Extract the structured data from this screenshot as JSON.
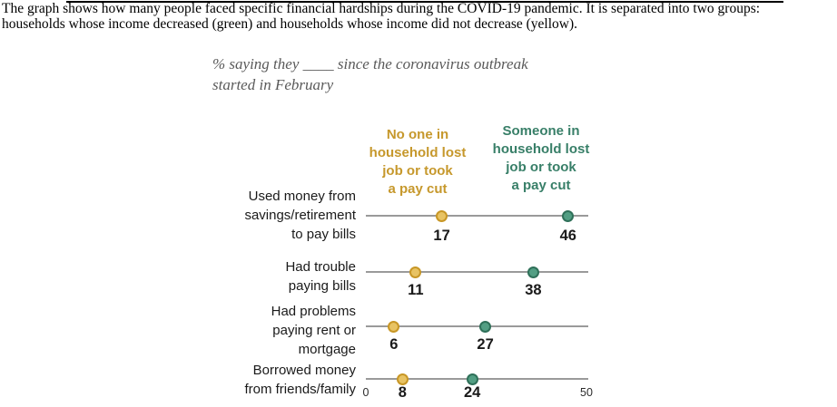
{
  "description": {
    "line1": "The graph shows how many people faced specific financial hardships during the COVID-19 pandemic. It is separated into two groups:",
    "line2": "households whose income decreased (green) and households whose income did not decrease (yellow)."
  },
  "chart": {
    "subtitle_line1": "% saying they ____ since the coronavirus outbreak",
    "subtitle_line2": "started in February",
    "legend": {
      "no_loss": {
        "lines": [
          "No one in",
          "household lost",
          "job or took",
          "a pay cut"
        ]
      },
      "loss": {
        "lines": [
          "Someone in",
          "household lost",
          "job or took",
          "a pay cut"
        ]
      }
    },
    "axis": {
      "min_label": "0",
      "max_label": "50"
    }
  },
  "rows": [
    {
      "label_lines": [
        "Used money from",
        "savings/retirement",
        "to pay bills"
      ]
    },
    {
      "label_lines": [
        "Had trouble",
        "paying bills"
      ]
    },
    {
      "label_lines": [
        "Had problems",
        "paying rent or",
        "mortgage"
      ]
    },
    {
      "label_lines": [
        "Borrowed money",
        "from friends/family"
      ]
    }
  ],
  "colors": {
    "gold-text": "#c6982c",
    "gold-fill": "#e8c363",
    "gold-border": "#c89726",
    "green-text": "#387f68",
    "green-fill": "#529e83",
    "green-border": "#2f7059",
    "line-gray": "#9a9a9a"
  },
  "chart_data": {
    "type": "scatter",
    "variant": "dot-plot-dumbbell",
    "title": "% saying they ____ since the coronavirus outbreak started in February",
    "categories": [
      "Used money from savings/retirement to pay bills",
      "Had trouble paying bills",
      "Had problems paying rent or mortgage",
      "Borrowed money from friends/family"
    ],
    "series": [
      {
        "name": "No one in household lost job or took a pay cut",
        "color": "#c6982c",
        "values": [
          17,
          11,
          6,
          8
        ]
      },
      {
        "name": "Someone in household lost job or took a pay cut",
        "color": "#387f68",
        "values": [
          46,
          38,
          27,
          24
        ]
      }
    ],
    "xlim": [
      0,
      50
    ],
    "x_axis_labels": [
      "0",
      "50"
    ],
    "grid": false,
    "legend_position": "top",
    "data_labels": true
  }
}
